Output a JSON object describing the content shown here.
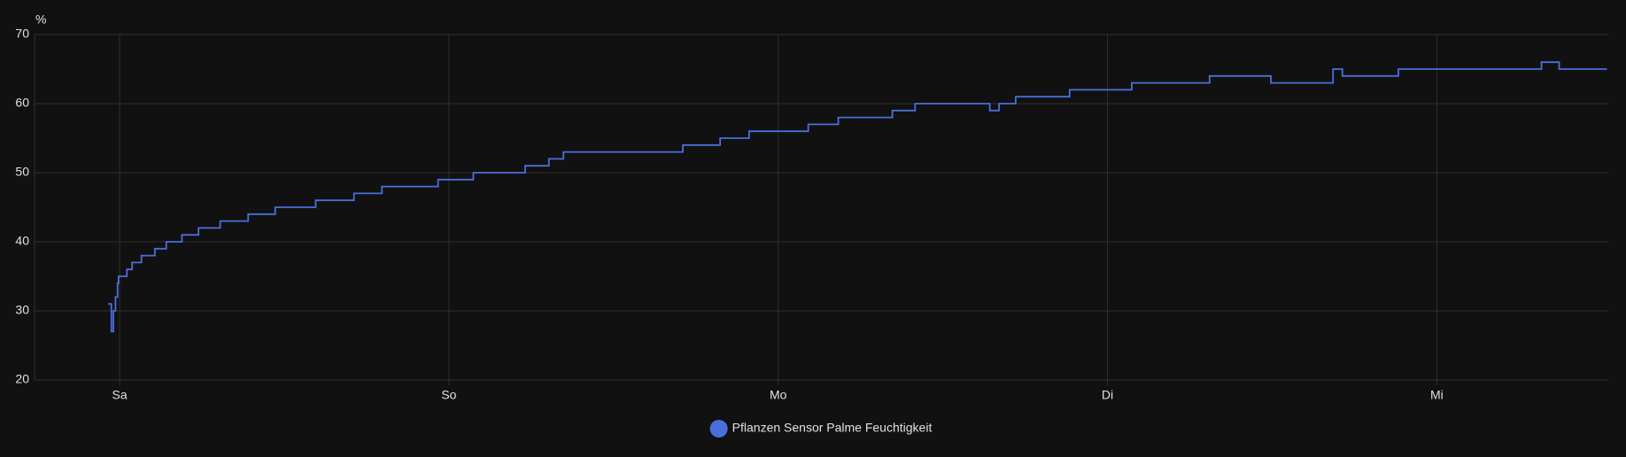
{
  "chart_data": {
    "type": "line",
    "step": "after",
    "y_label": "%",
    "x": [
      -0.83,
      -0.6,
      -0.45,
      -0.3,
      -0.15,
      -0.08,
      0.53,
      0.91,
      1.59,
      2.57,
      3.4,
      4.54,
      5.75,
      7.33,
      9.37,
      11.34,
      14.29,
      17.08,
      19.12,
      23.21,
      25.78,
      29.56,
      31.29,
      32.35,
      41.05,
      43.77,
      45.88,
      50.19,
      52.38,
      56.32,
      57.98,
      63.42,
      64.1,
      65.31,
      69.24,
      73.77,
      79.44,
      83.91,
      88.44,
      89.12,
      93.2,
      103.63,
      104.92,
      108.4
    ],
    "series": [
      {
        "name": "Pflanzen Sensor Palme Feuchtigkeit",
        "color": "#4a6fdb",
        "values": [
          31,
          27,
          30,
          32,
          34,
          35,
          36,
          37,
          38,
          39,
          40,
          41,
          42,
          43,
          44,
          45,
          46,
          47,
          48,
          49,
          50,
          51,
          52,
          53,
          54,
          55,
          56,
          57,
          58,
          59,
          60,
          59,
          60,
          61,
          62,
          63,
          64,
          63,
          65,
          64,
          65,
          66,
          65,
          65
        ]
      }
    ],
    "xlim": [
      -6.2,
      108.5
    ],
    "xticks": [
      {
        "value": 0,
        "label": "Sa"
      },
      {
        "value": 24,
        "label": "So"
      },
      {
        "value": 48,
        "label": "Mo"
      },
      {
        "value": 72,
        "label": "Di"
      },
      {
        "value": 96,
        "label": "Mi"
      }
    ],
    "ylim": [
      20,
      70
    ],
    "yticks": [
      20,
      30,
      40,
      50,
      60,
      70
    ],
    "grid": true,
    "legend": "bottom"
  }
}
